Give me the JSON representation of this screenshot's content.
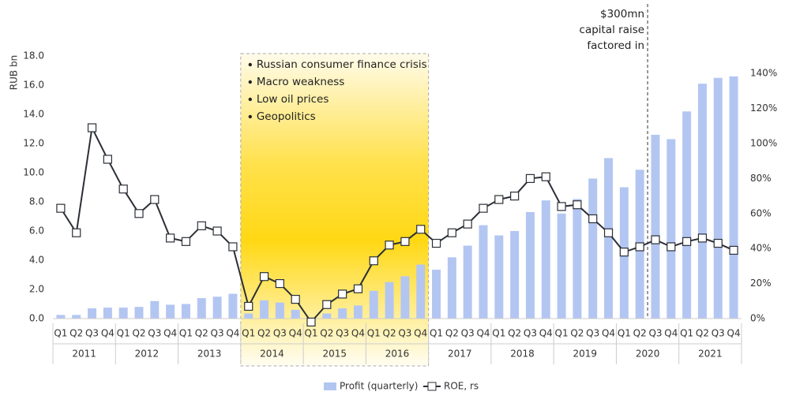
{
  "chart_data": {
    "type": "bar_line",
    "y_label": "RUB bn",
    "categories": [
      "Q1",
      "Q2",
      "Q3",
      "Q4",
      "Q1",
      "Q2",
      "Q3",
      "Q4",
      "Q1",
      "Q2",
      "Q3",
      "Q4",
      "Q1",
      "Q2",
      "Q3",
      "Q4",
      "Q1",
      "Q2",
      "Q3",
      "Q4",
      "Q1",
      "Q2",
      "Q3",
      "Q4",
      "Q1",
      "Q2",
      "Q3",
      "Q4",
      "Q1",
      "Q2",
      "Q3",
      "Q4",
      "Q1",
      "Q2",
      "Q3",
      "Q4",
      "Q1",
      "Q2",
      "Q3",
      "Q4",
      "Q1",
      "Q2",
      "Q3",
      "Q4"
    ],
    "years": [
      "2011",
      "2012",
      "2013",
      "2014",
      "2015",
      "2016",
      "2017",
      "2018",
      "2019",
      "2020",
      "2021"
    ],
    "series": [
      {
        "name": "Profit (quarterly)",
        "color": "#b3c6f2",
        "axis": "y",
        "values": [
          0.25,
          0.25,
          0.7,
          0.75,
          0.75,
          0.8,
          1.2,
          0.95,
          1.0,
          1.4,
          1.5,
          1.7,
          0.35,
          1.25,
          1.1,
          0.6,
          0.0,
          0.35,
          0.7,
          0.9,
          1.9,
          2.5,
          2.9,
          3.7,
          3.35,
          4.2,
          5.0,
          6.4,
          5.7,
          6.0,
          7.3,
          8.1,
          7.2,
          8.2,
          9.6,
          11.0,
          9.0,
          10.2,
          12.6,
          12.3,
          14.2,
          16.1,
          16.5,
          16.6
        ]
      },
      {
        "name": "ROE, rs",
        "color": "#2b2f36",
        "axis": "y2",
        "values": [
          63,
          49,
          109,
          91,
          74,
          60,
          68,
          46,
          44,
          53,
          50,
          41,
          7,
          24,
          20,
          11,
          -2,
          8,
          14,
          17,
          33,
          42,
          44,
          51,
          43,
          49,
          54,
          63,
          68,
          70,
          80,
          81,
          64,
          65,
          57,
          49,
          38,
          41,
          45,
          41,
          44,
          46,
          43,
          39
        ]
      }
    ],
    "ylim": [
      0,
      18
    ],
    "yticks": [
      {
        "value": 0,
        "label": "0.0"
      },
      {
        "value": 2,
        "label": "2.0"
      },
      {
        "value": 4,
        "label": "4.0"
      },
      {
        "value": 6,
        "label": "6.0"
      },
      {
        "value": 8,
        "label": "8.0"
      },
      {
        "value": 10,
        "label": "10.0"
      },
      {
        "value": 12,
        "label": "12.0"
      },
      {
        "value": 14,
        "label": "14.0"
      },
      {
        "value": 16,
        "label": "16.0"
      },
      {
        "value": 18,
        "label": "18.0"
      }
    ],
    "y2lim": [
      0,
      150
    ],
    "y2ticks": [
      {
        "value": 0,
        "label": "0%"
      },
      {
        "value": 20,
        "label": "20%"
      },
      {
        "value": 40,
        "label": "40%"
      },
      {
        "value": 60,
        "label": "60%"
      },
      {
        "value": 80,
        "label": "80%"
      },
      {
        "value": 100,
        "label": "100%"
      },
      {
        "value": 120,
        "label": "120%"
      },
      {
        "value": 140,
        "label": "140%"
      }
    ],
    "highlight_notes": [
      "Russian consumer finance crisis",
      "Macro weakness",
      "Low oil prices",
      "Geopolitics"
    ],
    "annotation": [
      "$300mn",
      "capital raise",
      "factored in"
    ]
  }
}
